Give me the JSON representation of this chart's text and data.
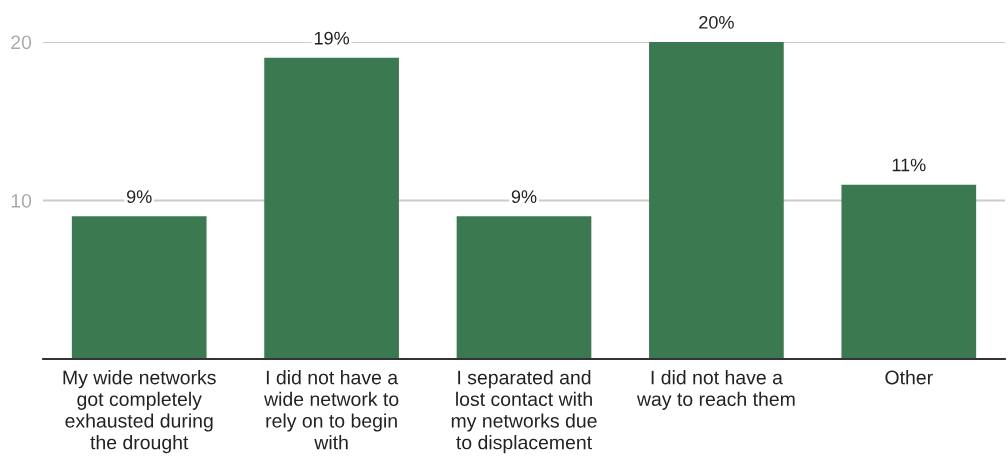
{
  "chart_data": {
    "type": "bar",
    "categories": [
      "My wide networks got completely exhausted during the drought",
      "I did not have a wide network to rely on to begin with",
      "I separated and lost contact with my networks due to displacement",
      "I did not have a way to reach them",
      "Other"
    ],
    "values": [
      9,
      19,
      9,
      20,
      11
    ],
    "color": "#3b7a50",
    "value_labels": [
      "9%",
      "19%",
      "9%",
      "20%",
      "11%"
    ],
    "ylim": [
      0,
      20
    ],
    "yticks": [
      10,
      20
    ],
    "grid": "y"
  }
}
